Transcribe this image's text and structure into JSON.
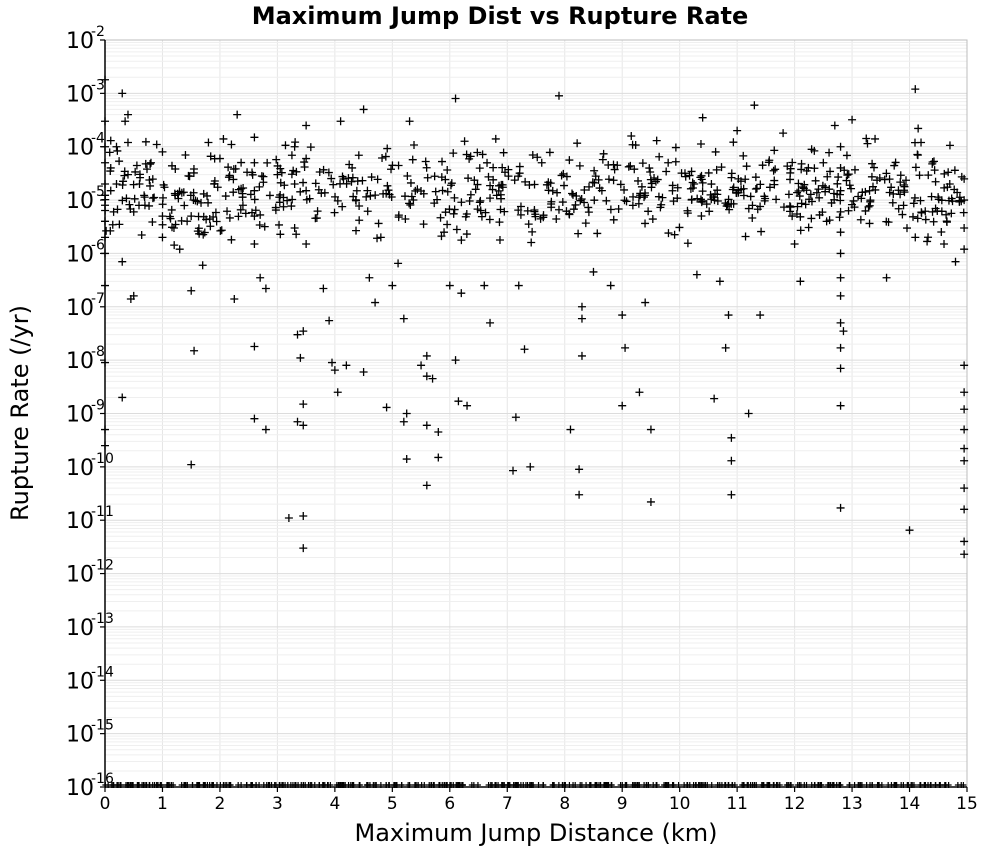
{
  "chart_data": {
    "type": "scatter",
    "title": "Maximum Jump Dist vs Rupture Rate",
    "xlabel": "Maximum Jump Distance (km)",
    "ylabel": "Rupture Rate (/yr)",
    "xlim": [
      0,
      15
    ],
    "ylim": [
      1e-16,
      0.01
    ],
    "y_scale": "log",
    "grid": true,
    "marker": "+",
    "marker_color": "#000000",
    "x_ticks": [
      "0",
      "1",
      "2",
      "3",
      "4",
      "5",
      "6",
      "7",
      "8",
      "9",
      "10",
      "11",
      "12",
      "13",
      "14",
      "15"
    ],
    "y_ticks": [
      {
        "base": "10",
        "exp": "-2"
      },
      {
        "base": "10",
        "exp": "-3"
      },
      {
        "base": "10",
        "exp": "-4"
      },
      {
        "base": "10",
        "exp": "-5"
      },
      {
        "base": "10",
        "exp": "-6"
      },
      {
        "base": "10",
        "exp": "-7"
      },
      {
        "base": "10",
        "exp": "-8"
      },
      {
        "base": "10",
        "exp": "-9"
      },
      {
        "base": "10",
        "exp": "-10"
      },
      {
        "base": "10",
        "exp": "-11"
      },
      {
        "base": "10",
        "exp": "-12"
      },
      {
        "base": "10",
        "exp": "-13"
      },
      {
        "base": "10",
        "exp": "-14"
      },
      {
        "base": "10",
        "exp": "-15"
      },
      {
        "base": "10",
        "exp": "-16"
      }
    ],
    "points": [
      {
        "x": 0.0,
        "y": 0.0018
      },
      {
        "x": 0.0,
        "y": 0.0003
      },
      {
        "x": 0.0,
        "y": 0.0001
      },
      {
        "x": 0.0,
        "y": 5e-05
      },
      {
        "x": 0.0,
        "y": 2e-05
      },
      {
        "x": 0.0,
        "y": 8e-06
      },
      {
        "x": 0.0,
        "y": 4e-06
      },
      {
        "x": 0.0,
        "y": 2e-06
      },
      {
        "x": 0.0,
        "y": 1e-06
      },
      {
        "x": 0.0,
        "y": 2.5e-07
      },
      {
        "x": 0.0,
        "y": 9e-09
      },
      {
        "x": 0.0,
        "y": 5e-10
      },
      {
        "x": 0.0,
        "y": 2.5e-10
      },
      {
        "x": 0.1,
        "y": 0.00013
      },
      {
        "x": 0.1,
        "y": 4e-05
      },
      {
        "x": 0.1,
        "y": 1.5e-05
      },
      {
        "x": 0.15,
        "y": 6e-06
      },
      {
        "x": 0.2,
        "y": 0.0001
      },
      {
        "x": 0.2,
        "y": 2e-05
      },
      {
        "x": 0.25,
        "y": 3.5e-06
      },
      {
        "x": 0.3,
        "y": 0.001
      },
      {
        "x": 0.3,
        "y": 2e-09
      },
      {
        "x": 0.3,
        "y": 7e-07
      },
      {
        "x": 0.35,
        "y": 0.0003
      },
      {
        "x": 0.4,
        "y": 0.0004
      },
      {
        "x": 0.4,
        "y": 0.00012
      },
      {
        "x": 0.4,
        "y": 3e-05
      },
      {
        "x": 0.45,
        "y": 1.4e-07
      },
      {
        "x": 0.5,
        "y": 1.6e-07
      },
      {
        "x": 0.5,
        "y": 6e-06
      },
      {
        "x": 0.6,
        "y": 2e-05
      },
      {
        "x": 0.8,
        "y": 5e-05
      },
      {
        "x": 0.9,
        "y": 0.00011
      },
      {
        "x": 1.0,
        "y": 8e-05
      },
      {
        "x": 1.0,
        "y": 5e-06
      },
      {
        "x": 1.0,
        "y": 2e-06
      },
      {
        "x": 1.2,
        "y": 3e-06
      },
      {
        "x": 1.3,
        "y": 1.2e-06
      },
      {
        "x": 1.4,
        "y": 7e-05
      },
      {
        "x": 1.5,
        "y": 5e-06
      },
      {
        "x": 1.5,
        "y": 2e-07
      },
      {
        "x": 1.55,
        "y": 1.5e-08
      },
      {
        "x": 1.5,
        "y": 1.1e-10
      },
      {
        "x": 1.7,
        "y": 6e-07
      },
      {
        "x": 1.8,
        "y": 0.00012
      },
      {
        "x": 1.9,
        "y": 2e-05
      },
      {
        "x": 2.0,
        "y": 6e-05
      },
      {
        "x": 2.2,
        "y": 0.00011
      },
      {
        "x": 2.2,
        "y": 1.8e-06
      },
      {
        "x": 2.25,
        "y": 1.4e-07
      },
      {
        "x": 2.3,
        "y": 0.0004
      },
      {
        "x": 2.4,
        "y": 8e-06
      },
      {
        "x": 2.6,
        "y": 0.00015
      },
      {
        "x": 2.6,
        "y": 5e-05
      },
      {
        "x": 2.6,
        "y": 1.5e-05
      },
      {
        "x": 2.6,
        "y": 5e-06
      },
      {
        "x": 2.6,
        "y": 1.5e-06
      },
      {
        "x": 2.6,
        "y": 1.8e-08
      },
      {
        "x": 2.6,
        "y": 8e-10
      },
      {
        "x": 2.7,
        "y": 3.5e-07
      },
      {
        "x": 2.8,
        "y": 2.2e-07
      },
      {
        "x": 2.8,
        "y": 5e-10
      },
      {
        "x": 3.0,
        "y": 3e-05
      },
      {
        "x": 3.2,
        "y": 1.1e-11
      },
      {
        "x": 3.3,
        "y": 0.0001
      },
      {
        "x": 3.3,
        "y": 2e-05
      },
      {
        "x": 3.3,
        "y": 3e-06
      },
      {
        "x": 3.35,
        "y": 3e-08
      },
      {
        "x": 3.4,
        "y": 1.1e-08
      },
      {
        "x": 3.35,
        "y": 7e-10
      },
      {
        "x": 3.45,
        "y": 1.2e-11
      },
      {
        "x": 3.45,
        "y": 1.5e-09
      },
      {
        "x": 3.45,
        "y": 6e-10
      },
      {
        "x": 3.45,
        "y": 3e-12
      },
      {
        "x": 3.45,
        "y": 3.5e-08
      },
      {
        "x": 3.5,
        "y": 0.00025
      },
      {
        "x": 3.5,
        "y": 6e-05
      },
      {
        "x": 3.5,
        "y": 1.5e-05
      },
      {
        "x": 3.5,
        "y": 1.5e-06
      },
      {
        "x": 3.8,
        "y": 2.2e-07
      },
      {
        "x": 3.9,
        "y": 5.5e-08
      },
      {
        "x": 3.95,
        "y": 9e-09
      },
      {
        "x": 4.0,
        "y": 6.5e-09
      },
      {
        "x": 4.05,
        "y": 2.5e-09
      },
      {
        "x": 4.1,
        "y": 0.0003
      },
      {
        "x": 4.2,
        "y": 8e-09
      },
      {
        "x": 4.3,
        "y": 4e-05
      },
      {
        "x": 4.5,
        "y": 0.0005
      },
      {
        "x": 4.5,
        "y": 6e-09
      },
      {
        "x": 4.6,
        "y": 3.5e-07
      },
      {
        "x": 4.7,
        "y": 1.2e-07
      },
      {
        "x": 4.8,
        "y": 2e-06
      },
      {
        "x": 4.9,
        "y": 1.3e-09
      },
      {
        "x": 5.0,
        "y": 2.5e-07
      },
      {
        "x": 5.1,
        "y": 6.5e-07
      },
      {
        "x": 5.2,
        "y": 6e-08
      },
      {
        "x": 5.2,
        "y": 7e-10
      },
      {
        "x": 5.25,
        "y": 1e-09
      },
      {
        "x": 5.25,
        "y": 1.4e-10
      },
      {
        "x": 5.3,
        "y": 0.0003
      },
      {
        "x": 5.5,
        "y": 8e-09
      },
      {
        "x": 5.6,
        "y": 4.5e-11
      },
      {
        "x": 5.6,
        "y": 1.2e-08
      },
      {
        "x": 5.6,
        "y": 5e-09
      },
      {
        "x": 5.6,
        "y": 6e-10
      },
      {
        "x": 5.7,
        "y": 4.5e-09
      },
      {
        "x": 5.8,
        "y": 4.5e-10
      },
      {
        "x": 5.8,
        "y": 1.5e-10
      },
      {
        "x": 5.9,
        "y": 2.5e-06
      },
      {
        "x": 6.0,
        "y": 2.5e-07
      },
      {
        "x": 6.1,
        "y": 0.0008
      },
      {
        "x": 6.1,
        "y": 1e-08
      },
      {
        "x": 6.15,
        "y": 1.7e-09
      },
      {
        "x": 6.3,
        "y": 1.4e-09
      },
      {
        "x": 6.2,
        "y": 1.8e-07
      },
      {
        "x": 6.6,
        "y": 2.5e-07
      },
      {
        "x": 6.7,
        "y": 5e-08
      },
      {
        "x": 6.8,
        "y": 0.00014
      },
      {
        "x": 7.1,
        "y": 8.5e-11
      },
      {
        "x": 7.15,
        "y": 8.5e-10
      },
      {
        "x": 7.2,
        "y": 2.5e-07
      },
      {
        "x": 7.3,
        "y": 1.6e-08
      },
      {
        "x": 7.4,
        "y": 1e-10
      },
      {
        "x": 7.6,
        "y": 5e-05
      },
      {
        "x": 7.9,
        "y": 0.0009
      },
      {
        "x": 8.1,
        "y": 5e-10
      },
      {
        "x": 8.25,
        "y": 9e-11
      },
      {
        "x": 8.25,
        "y": 3e-11
      },
      {
        "x": 8.3,
        "y": 1.2e-08
      },
      {
        "x": 8.3,
        "y": 1e-07
      },
      {
        "x": 8.3,
        "y": 6e-08
      },
      {
        "x": 8.5,
        "y": 4.5e-07
      },
      {
        "x": 8.8,
        "y": 2.5e-07
      },
      {
        "x": 9.0,
        "y": 1.4e-09
      },
      {
        "x": 9.05,
        "y": 1.7e-08
      },
      {
        "x": 9.0,
        "y": 7e-08
      },
      {
        "x": 9.3,
        "y": 2.5e-09
      },
      {
        "x": 9.4,
        "y": 1.2e-07
      },
      {
        "x": 9.5,
        "y": 5e-10
      },
      {
        "x": 9.5,
        "y": 2.2e-11
      },
      {
        "x": 9.6,
        "y": 0.00013
      },
      {
        "x": 9.8,
        "y": 5e-05
      },
      {
        "x": 10.3,
        "y": 4e-07
      },
      {
        "x": 10.4,
        "y": 0.00035
      },
      {
        "x": 10.6,
        "y": 1.9e-09
      },
      {
        "x": 10.7,
        "y": 3e-07
      },
      {
        "x": 10.8,
        "y": 1.7e-08
      },
      {
        "x": 10.9,
        "y": 3.5e-10
      },
      {
        "x": 10.85,
        "y": 7e-08
      },
      {
        "x": 10.9,
        "y": 1.3e-10
      },
      {
        "x": 10.9,
        "y": 3e-11
      },
      {
        "x": 11.0,
        "y": 0.0002
      },
      {
        "x": 11.2,
        "y": 1e-09
      },
      {
        "x": 11.3,
        "y": 0.0006
      },
      {
        "x": 11.4,
        "y": 7e-08
      },
      {
        "x": 11.8,
        "y": 0.00018
      },
      {
        "x": 12.0,
        "y": 1.5e-06
      },
      {
        "x": 12.1,
        "y": 3e-07
      },
      {
        "x": 12.5,
        "y": 5e-05
      },
      {
        "x": 12.7,
        "y": 0.00025
      },
      {
        "x": 12.8,
        "y": 0.0001
      },
      {
        "x": 12.8,
        "y": 4e-05
      },
      {
        "x": 12.8,
        "y": 1.5e-05
      },
      {
        "x": 12.8,
        "y": 6e-06
      },
      {
        "x": 12.8,
        "y": 2.5e-06
      },
      {
        "x": 12.8,
        "y": 1e-06
      },
      {
        "x": 12.8,
        "y": 3.5e-07
      },
      {
        "x": 12.8,
        "y": 1.6e-07
      },
      {
        "x": 12.8,
        "y": 5e-08
      },
      {
        "x": 12.85,
        "y": 3.5e-08
      },
      {
        "x": 12.8,
        "y": 1.7e-08
      },
      {
        "x": 12.8,
        "y": 7e-09
      },
      {
        "x": 12.8,
        "y": 1.4e-09
      },
      {
        "x": 12.8,
        "y": 1.7e-11
      },
      {
        "x": 13.0,
        "y": 0.00032
      },
      {
        "x": 13.4,
        "y": 0.00014
      },
      {
        "x": 13.6,
        "y": 3.5e-07
      },
      {
        "x": 14.0,
        "y": 6.5e-12
      },
      {
        "x": 14.1,
        "y": 0.0012
      },
      {
        "x": 14.15,
        "y": 0.00022
      },
      {
        "x": 14.2,
        "y": 0.00012
      },
      {
        "x": 14.1,
        "y": 2e-06
      },
      {
        "x": 14.4,
        "y": 6e-06
      },
      {
        "x": 14.6,
        "y": 1.5e-06
      },
      {
        "x": 14.7,
        "y": 2e-05
      },
      {
        "x": 14.8,
        "y": 7e-07
      },
      {
        "x": 14.95,
        "y": 2.5e-05
      },
      {
        "x": 14.95,
        "y": 1e-05
      },
      {
        "x": 14.95,
        "y": 3e-06
      },
      {
        "x": 14.95,
        "y": 1.2e-06
      },
      {
        "x": 14.95,
        "y": 8e-09
      },
      {
        "x": 14.95,
        "y": 2.5e-09
      },
      {
        "x": 14.95,
        "y": 1.2e-09
      },
      {
        "x": 14.95,
        "y": 5e-10
      },
      {
        "x": 14.95,
        "y": 2.2e-10
      },
      {
        "x": 14.95,
        "y": 1.3e-10
      },
      {
        "x": 14.95,
        "y": 4e-11
      },
      {
        "x": 14.95,
        "y": 1.6e-11
      },
      {
        "x": 14.95,
        "y": 4e-12
      },
      {
        "x": 14.95,
        "y": 2.3e-12
      }
    ],
    "cluster_region": {
      "note": "dense band of many additional + markers",
      "x_range": [
        0,
        15
      ],
      "y_range": [
        1e-06,
        0.0002
      ],
      "count": 700
    },
    "floor_row": {
      "note": "dense row of markers along the lower axis",
      "y": 1e-16,
      "x_range": [
        0,
        15
      ],
      "count": 420
    }
  }
}
